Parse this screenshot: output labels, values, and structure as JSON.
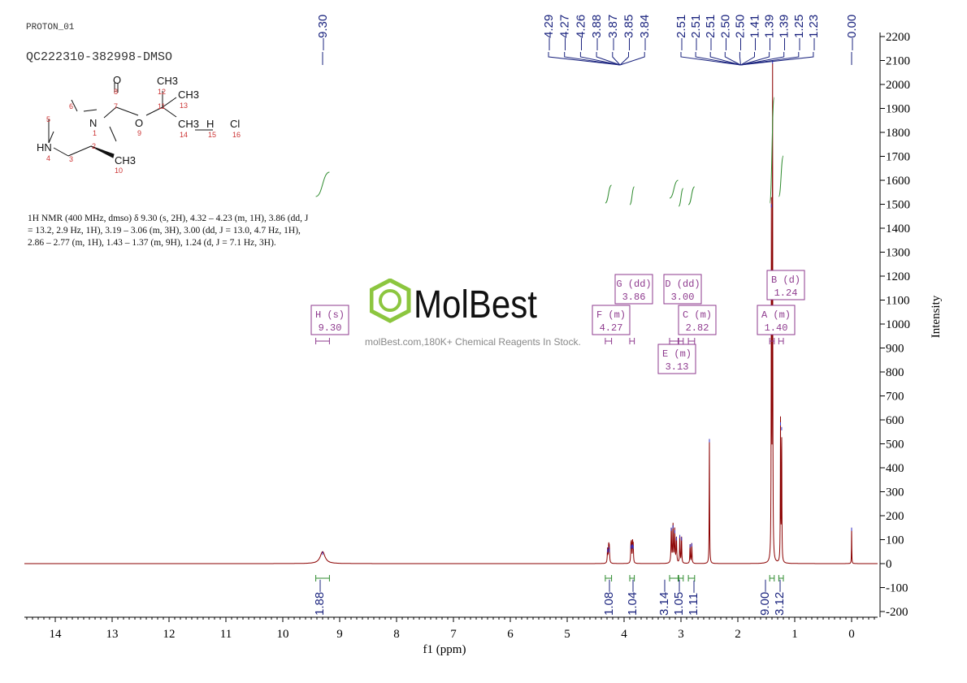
{
  "header": {
    "experiment": "PROTON_01",
    "sample": "QC222310-382998-DMSO"
  },
  "description": "1H NMR (400 MHz, dmso) δ 9.30 (s, 2H), 4.32 – 4.23 (m, 1H), 3.86 (dd, J = 13.2, 2.9 Hz, 1H), 3.19 – 3.06 (m, 3H), 3.00 (dd, J = 13.0, 4.7 Hz, 1H), 2.86 – 2.77 (m, 1H), 1.43 – 1.37 (m, 9H), 1.24 (d, J = 7.1 Hz, 3H).",
  "structure": {
    "atoms": [
      "O",
      "8",
      "7",
      "CH3",
      "12",
      "11",
      "CH3",
      "13",
      "N",
      "1",
      "O",
      "9",
      "CH3",
      "14",
      "H",
      "15",
      "Cl",
      "16",
      "6",
      "5",
      "HN",
      "4",
      "3",
      "2",
      "CH3",
      "10"
    ]
  },
  "watermark": {
    "brand": "MolBest",
    "tagline": "molBest.com,180K+ Chemical Reagents In Stock."
  },
  "chart_data": {
    "type": "line",
    "xlabel": "f1 (ppm)",
    "ylabel": "Intensity",
    "xlim": [
      14.54,
      -0.46
    ],
    "ylim": [
      -200,
      2250
    ],
    "xticks": [
      14,
      13,
      12,
      11,
      10,
      9,
      8,
      7,
      6,
      5,
      4,
      3,
      2,
      1,
      0
    ],
    "yticks": [
      2200,
      2100,
      2000,
      1900,
      1800,
      1700,
      1600,
      1500,
      1400,
      1300,
      1200,
      1100,
      1000,
      900,
      800,
      700,
      600,
      500,
      400,
      300,
      200,
      100,
      0,
      -100,
      -200
    ],
    "line_color": "#8b0000",
    "peaks": [
      {
        "ppm": 9.3,
        "height": 50,
        "width": 0.05
      },
      {
        "ppm": 4.29,
        "height": 60,
        "width": 0.006
      },
      {
        "ppm": 4.27,
        "height": 70,
        "width": 0.006
      },
      {
        "ppm": 4.26,
        "height": 60,
        "width": 0.006
      },
      {
        "ppm": 3.88,
        "height": 75,
        "width": 0.005
      },
      {
        "ppm": 3.87,
        "height": 80,
        "width": 0.005
      },
      {
        "ppm": 3.85,
        "height": 80,
        "width": 0.005
      },
      {
        "ppm": 3.84,
        "height": 75,
        "width": 0.005
      },
      {
        "ppm": 3.17,
        "height": 150,
        "width": 0.006
      },
      {
        "ppm": 3.14,
        "height": 160,
        "width": 0.006
      },
      {
        "ppm": 3.11,
        "height": 140,
        "width": 0.006
      },
      {
        "ppm": 3.08,
        "height": 110,
        "width": 0.006
      },
      {
        "ppm": 3.02,
        "height": 120,
        "width": 0.005
      },
      {
        "ppm": 2.99,
        "height": 110,
        "width": 0.005
      },
      {
        "ppm": 2.84,
        "height": 80,
        "width": 0.005
      },
      {
        "ppm": 2.81,
        "height": 85,
        "width": 0.005
      },
      {
        "ppm": 2.5,
        "height": 520,
        "width": 0.004
      },
      {
        "ppm": 1.41,
        "height": 1500,
        "width": 0.004
      },
      {
        "ppm": 1.39,
        "height": 2100,
        "width": 0.004
      },
      {
        "ppm": 1.25,
        "height": 590,
        "width": 0.004
      },
      {
        "ppm": 1.23,
        "height": 570,
        "width": 0.004
      },
      {
        "ppm": 0.0,
        "height": 150,
        "width": 0.003
      }
    ],
    "peak_label_groups": [
      {
        "labels": [
          "9.30"
        ],
        "target": 9.3
      },
      {
        "labels": [
          "4.29",
          "4.27",
          "4.26",
          "3.88",
          "3.87",
          "3.85",
          "3.84"
        ],
        "target": 4.07
      },
      {
        "labels": [
          "2.51",
          "2.51",
          "2.51",
          "2.50",
          "2.50",
          "1.41",
          "1.39",
          "1.39",
          "1.25",
          "1.23"
        ],
        "target": 1.95
      },
      {
        "labels": [
          "0.00"
        ],
        "target": 0.0
      }
    ],
    "integrals": [
      {
        "from": 9.42,
        "to": 9.18,
        "value": "1.88"
      },
      {
        "from": 4.33,
        "to": 4.22,
        "value": "1.08"
      },
      {
        "from": 3.9,
        "to": 3.82,
        "value": "1.04"
      },
      {
        "from": 3.2,
        "to": 3.05,
        "value": "3.14"
      },
      {
        "from": 3.04,
        "to": 2.96,
        "value": "1.05"
      },
      {
        "from": 2.87,
        "to": 2.76,
        "value": "1.11"
      },
      {
        "from": 1.44,
        "to": 1.36,
        "value": "9.00"
      },
      {
        "from": 1.28,
        "to": 1.2,
        "value": "3.12"
      }
    ],
    "multiplets": [
      {
        "letter": "H",
        "type": "s",
        "shift": "9.30"
      },
      {
        "letter": "F",
        "type": "m",
        "shift": "4.27"
      },
      {
        "letter": "G",
        "type": "dd",
        "shift": "3.86"
      },
      {
        "letter": "D",
        "type": "dd",
        "shift": "3.00"
      },
      {
        "letter": "E",
        "type": "m",
        "shift": "3.13"
      },
      {
        "letter": "C",
        "type": "m",
        "shift": "2.82"
      },
      {
        "letter": "A",
        "type": "m",
        "shift": "1.40"
      },
      {
        "letter": "B",
        "type": "d",
        "shift": "1.24"
      }
    ]
  }
}
